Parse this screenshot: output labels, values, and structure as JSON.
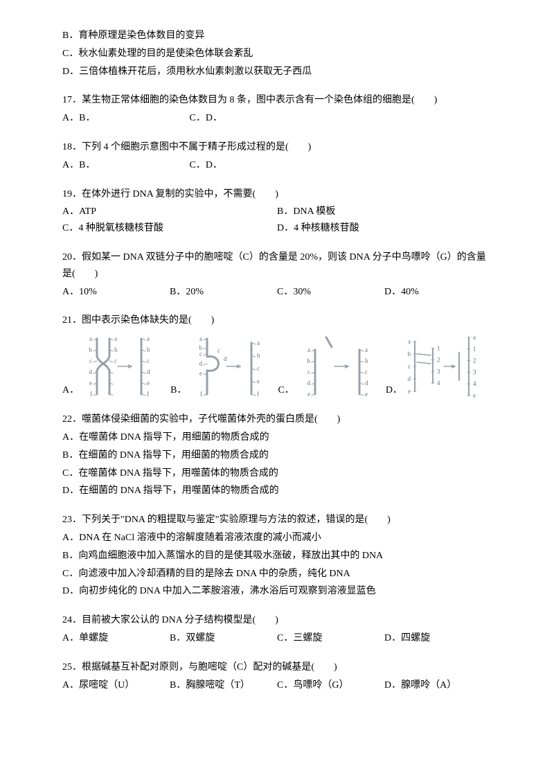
{
  "q16_cont": {
    "b": "B．育种原理是染色体数目的变异",
    "c": "C．秋水仙素处理的目的是使染色体联会紊乱",
    "d": "D．三倍体植株开花后，须用秋水仙素刺激以获取无子西瓜"
  },
  "q17": {
    "text": "17．某生物正常体细胞的染色体数目为 8 条，图中表示含有一个染色体组的细胞是(　　)",
    "a_b": "A．B．",
    "c_d": "C．D．"
  },
  "q18": {
    "text": "18．下列 4 个细胞示意图中不属于精子形成过程的是(　　)",
    "a_b": "A．B．",
    "c_d": "C．D．"
  },
  "q19": {
    "text": "19．在体外进行 DNA 复制的实验中，不需要(　　)",
    "a": "A．ATP",
    "b": "B．DNA 模板",
    "c": "C．4 种脱氧核糖核苷酸",
    "d": "D．4 种核糖核苷酸"
  },
  "q20": {
    "text": "20．假如某一 DNA 双链分子中的胞嘧啶（C）的含量是 20%，则该 DNA 分子中鸟嘌呤（G）的含量是(　　)",
    "a": "A．10%",
    "b": "B．20%",
    "c": "C．30%",
    "d": "D．40%"
  },
  "q21": {
    "text": "21．图中表示染色体缺失的是(　　)",
    "labels": {
      "a": "A．",
      "b": "B．",
      "c": "C．",
      "d": "D．"
    },
    "diagrams": {
      "stroke_color": "#9aa0a8",
      "label_color": "#6a6e74",
      "font_size": 9,
      "width": 120,
      "height": 95,
      "A": {
        "left_labels": [
          "a",
          "b",
          "c",
          "d",
          "e",
          "f"
        ],
        "right_labels": [
          "a",
          "b",
          "c",
          "d",
          "e",
          "f"
        ],
        "cross": true
      },
      "B": {
        "left_labels": [
          "a",
          "b",
          "c",
          "d",
          "e",
          "f"
        ],
        "right_labels": [
          "a",
          "b",
          "c",
          "e",
          "f"
        ],
        "loop": true
      },
      "C": {
        "left_labels": [
          "a",
          "b",
          "c",
          "d",
          "e"
        ],
        "right_labels": [
          "a",
          "b",
          "c",
          "d",
          "e"
        ],
        "fragment": true
      },
      "D": {
        "left_labels": [
          "a",
          "b",
          "c",
          "d",
          "e"
        ],
        "mid_labels": [
          "1",
          "2",
          "3",
          "4"
        ],
        "right_labels": [
          "a",
          "1",
          "2",
          "3",
          "4",
          "e"
        ],
        "translocation": true
      }
    }
  },
  "q22": {
    "text": "22．噬菌体侵染细菌的实验中，子代噬菌体外壳的蛋白质是(　　)",
    "a": "A．在噬菌体 DNA 指导下，用细菌的物质合成的",
    "b": "B．在细菌的 DNA 指导下，用细菌的物质合成的",
    "c": "C．在噬菌体 DNA 指导下，用噬菌体的物质合成的",
    "d": "D．在细菌的 DNA 指导下，用噬菌体的物质合成的"
  },
  "q23": {
    "text": "23．下列关于\"DNA 的粗提取与鉴定\"实验原理与方法的叙述，错误的是(　　)",
    "a": "A．DNA 在 NaCl 溶液中的溶解度随着溶液浓度的减小而减小",
    "b": "B．向鸡血细胞液中加入蒸馏水的目的是使其吸水涨破，释放出其中的 DNA",
    "c": "C．向滤液中加入冷却酒精的目的是除去 DNA 中的杂质，纯化 DNA",
    "d": "D．向初步纯化的 DNA 中加入二苯胺溶液，沸水浴后可观察到溶液显蓝色"
  },
  "q24": {
    "text": "24．目前被大家公认的 DNA 分子结构模型是(　　)",
    "a": "A．单螺旋",
    "b": "B．双螺旋",
    "c": "C．三螺旋",
    "d": "D．四螺旋"
  },
  "q25": {
    "text": "25．根据碱基互补配对原则，与胞嘧啶（C）配对的碱基是(　　)",
    "a": "A．尿嘧啶（U）",
    "b": "B．胸腺嘧啶（T）",
    "c": "C．鸟嘌呤（G）",
    "d": "D．腺嘌呤（A）"
  }
}
